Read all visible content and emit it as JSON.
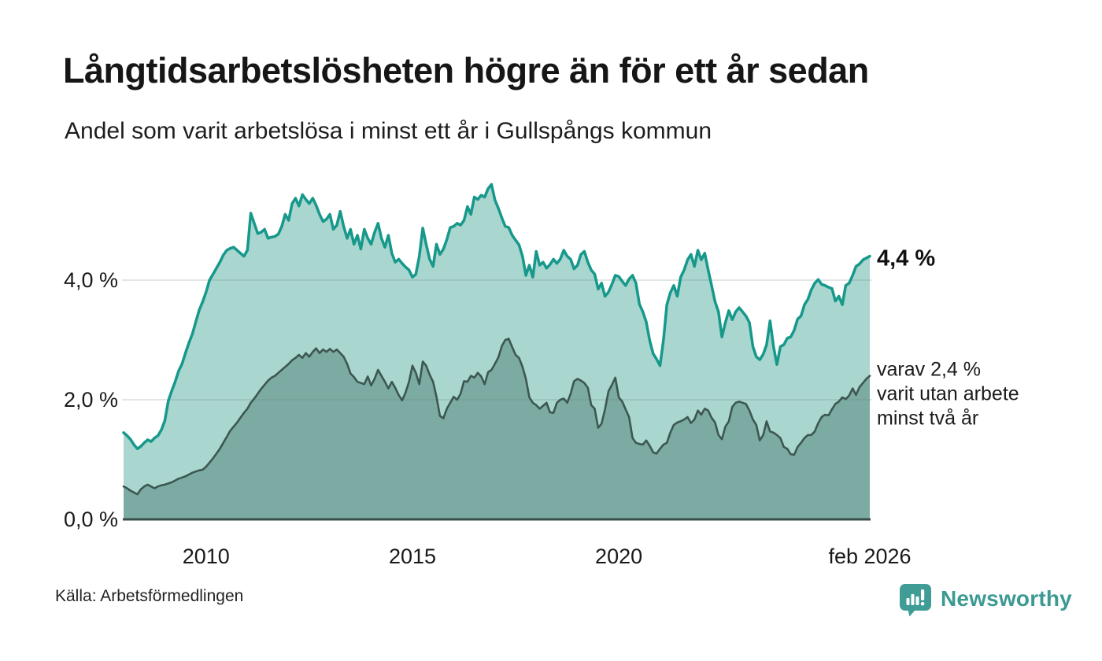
{
  "header": {
    "title": "Långtidsarbetslösheten högre än för ett år sedan",
    "subtitle": "Andel som varit arbetslösa i minst ett år i Gullspångs kommun"
  },
  "footer": {
    "source": "Källa: Arbetsförmedlingen",
    "brand": "Newsworthy"
  },
  "colors": {
    "line_total": "#16988b",
    "fill_total": "#a9d6cf",
    "line_two_years": "#3d5752",
    "fill_two_years": "#7caba3",
    "baseline": "#3a4e4a",
    "gridline": "#64807c",
    "brand_teal": "#3f9d96",
    "text": "#161616"
  },
  "chart_data": {
    "type": "area",
    "title": "Långtidsarbetslösheten högre än för ett år sedan",
    "subtitle": "Andel som varit arbetslösa i minst ett år i Gullspångs kommun",
    "xlabel": "",
    "ylabel": "",
    "unit": "%",
    "frequency": "monthly",
    "x_start": "2008-01",
    "x_end": "2026-02",
    "ylim": [
      0,
      5.8
    ],
    "grid": "horizontal gridlines at 2.0 and 4.0",
    "legend_position": "right-edge annotations",
    "y_ticks": [
      {
        "value": 0,
        "label": "0,0 %"
      },
      {
        "value": 2,
        "label": "2,0 %"
      },
      {
        "value": 4,
        "label": "4,0 %"
      }
    ],
    "x_ticks": [
      {
        "month_index": 24,
        "label": "2010"
      },
      {
        "month_index": 84,
        "label": "2015"
      },
      {
        "month_index": 144,
        "label": "2020"
      },
      {
        "month_index": 217,
        "label": "feb 2026"
      }
    ],
    "annotations": {
      "total_label": "4,4 %",
      "inner_label_lines": [
        "varav 2,4 %",
        "varit utan arbete",
        "minst två år"
      ]
    },
    "series": [
      {
        "name": "Andel som varit arbetslösa i minst ett år",
        "latest_value": 4.4,
        "values": [
          1.45,
          1.4,
          1.34,
          1.25,
          1.18,
          1.22,
          1.28,
          1.33,
          1.3,
          1.36,
          1.4,
          1.5,
          1.65,
          1.98,
          2.15,
          2.3,
          2.48,
          2.6,
          2.78,
          2.95,
          3.1,
          3.3,
          3.5,
          3.64,
          3.8,
          4.0,
          4.1,
          4.2,
          4.3,
          4.42,
          4.5,
          4.53,
          4.55,
          4.5,
          4.45,
          4.4,
          4.5,
          5.12,
          4.95,
          4.78,
          4.8,
          4.85,
          4.7,
          4.72,
          4.73,
          4.77,
          4.9,
          5.1,
          5.0,
          5.28,
          5.37,
          5.24,
          5.43,
          5.35,
          5.28,
          5.37,
          5.25,
          5.1,
          4.98,
          5.02,
          5.1,
          4.85,
          4.92,
          5.15,
          4.9,
          4.7,
          4.85,
          4.6,
          4.75,
          4.52,
          4.85,
          4.7,
          4.6,
          4.8,
          4.95,
          4.7,
          4.55,
          4.75,
          4.45,
          4.3,
          4.35,
          4.28,
          4.22,
          4.17,
          4.05,
          4.1,
          4.4,
          4.87,
          4.6,
          4.35,
          4.23,
          4.6,
          4.43,
          4.52,
          4.68,
          4.88,
          4.9,
          4.95,
          4.92,
          5.0,
          5.23,
          5.1,
          5.39,
          5.35,
          5.42,
          5.39,
          5.53,
          5.6,
          5.34,
          5.2,
          5.04,
          4.9,
          4.88,
          4.75,
          4.67,
          4.59,
          4.4,
          4.08,
          4.25,
          4.05,
          4.48,
          4.25,
          4.3,
          4.2,
          4.26,
          4.35,
          4.28,
          4.35,
          4.5,
          4.4,
          4.35,
          4.19,
          4.25,
          4.43,
          4.48,
          4.3,
          4.17,
          4.1,
          3.85,
          3.95,
          3.73,
          3.8,
          3.93,
          4.08,
          4.06,
          3.98,
          3.91,
          4.02,
          4.08,
          3.95,
          3.6,
          3.47,
          3.3,
          2.99,
          2.77,
          2.68,
          2.57,
          3.0,
          3.59,
          3.79,
          3.91,
          3.73,
          4.05,
          4.17,
          4.34,
          4.43,
          4.23,
          4.5,
          4.34,
          4.45,
          4.17,
          3.91,
          3.64,
          3.47,
          3.05,
          3.29,
          3.49,
          3.34,
          3.47,
          3.54,
          3.47,
          3.4,
          3.29,
          2.89,
          2.72,
          2.67,
          2.76,
          2.92,
          3.32,
          2.89,
          2.59,
          2.89,
          2.92,
          3.03,
          3.05,
          3.16,
          3.35,
          3.4,
          3.59,
          3.68,
          3.84,
          3.95,
          4.01,
          3.93,
          3.91,
          3.88,
          3.86,
          3.65,
          3.73,
          3.59,
          3.91,
          3.95,
          4.08,
          4.23,
          4.27,
          4.34,
          4.37,
          4.4
        ]
      },
      {
        "name": "Andel som varit utan arbete i minst två år",
        "latest_value": 2.4,
        "values": [
          0.55,
          0.52,
          0.48,
          0.45,
          0.42,
          0.5,
          0.55,
          0.58,
          0.55,
          0.52,
          0.55,
          0.57,
          0.58,
          0.6,
          0.62,
          0.65,
          0.68,
          0.7,
          0.72,
          0.75,
          0.78,
          0.8,
          0.82,
          0.83,
          0.88,
          0.95,
          1.02,
          1.1,
          1.18,
          1.28,
          1.38,
          1.48,
          1.55,
          1.62,
          1.7,
          1.78,
          1.85,
          1.95,
          2.02,
          2.1,
          2.18,
          2.25,
          2.32,
          2.37,
          2.4,
          2.45,
          2.5,
          2.55,
          2.6,
          2.66,
          2.7,
          2.75,
          2.7,
          2.78,
          2.72,
          2.8,
          2.86,
          2.78,
          2.84,
          2.8,
          2.85,
          2.8,
          2.84,
          2.78,
          2.72,
          2.6,
          2.44,
          2.38,
          2.3,
          2.28,
          2.26,
          2.39,
          2.24,
          2.35,
          2.5,
          2.4,
          2.3,
          2.19,
          2.3,
          2.2,
          2.08,
          1.99,
          2.12,
          2.3,
          2.57,
          2.45,
          2.26,
          2.64,
          2.57,
          2.42,
          2.3,
          2.05,
          1.73,
          1.69,
          1.85,
          1.95,
          2.05,
          2.0,
          2.1,
          2.31,
          2.3,
          2.4,
          2.37,
          2.45,
          2.39,
          2.26,
          2.46,
          2.5,
          2.6,
          2.71,
          2.9,
          3.0,
          3.02,
          2.88,
          2.75,
          2.7,
          2.55,
          2.35,
          2.04,
          1.95,
          1.91,
          1.85,
          1.9,
          1.95,
          1.79,
          1.78,
          1.95,
          2.0,
          2.02,
          1.95,
          2.1,
          2.31,
          2.35,
          2.32,
          2.28,
          2.2,
          1.91,
          1.85,
          1.53,
          1.6,
          1.84,
          2.14,
          2.25,
          2.37,
          2.04,
          1.97,
          1.84,
          1.71,
          1.36,
          1.28,
          1.26,
          1.25,
          1.32,
          1.23,
          1.12,
          1.1,
          1.18,
          1.25,
          1.28,
          1.45,
          1.58,
          1.62,
          1.64,
          1.67,
          1.71,
          1.61,
          1.67,
          1.82,
          1.75,
          1.85,
          1.82,
          1.7,
          1.62,
          1.41,
          1.34,
          1.55,
          1.64,
          1.88,
          1.95,
          1.97,
          1.95,
          1.93,
          1.82,
          1.67,
          1.58,
          1.32,
          1.41,
          1.64,
          1.47,
          1.45,
          1.41,
          1.36,
          1.21,
          1.18,
          1.09,
          1.08,
          1.21,
          1.28,
          1.36,
          1.41,
          1.41,
          1.47,
          1.61,
          1.71,
          1.75,
          1.74,
          1.84,
          1.93,
          1.97,
          2.04,
          2.01,
          2.07,
          2.19,
          2.08,
          2.21,
          2.28,
          2.35,
          2.4
        ]
      }
    ]
  }
}
